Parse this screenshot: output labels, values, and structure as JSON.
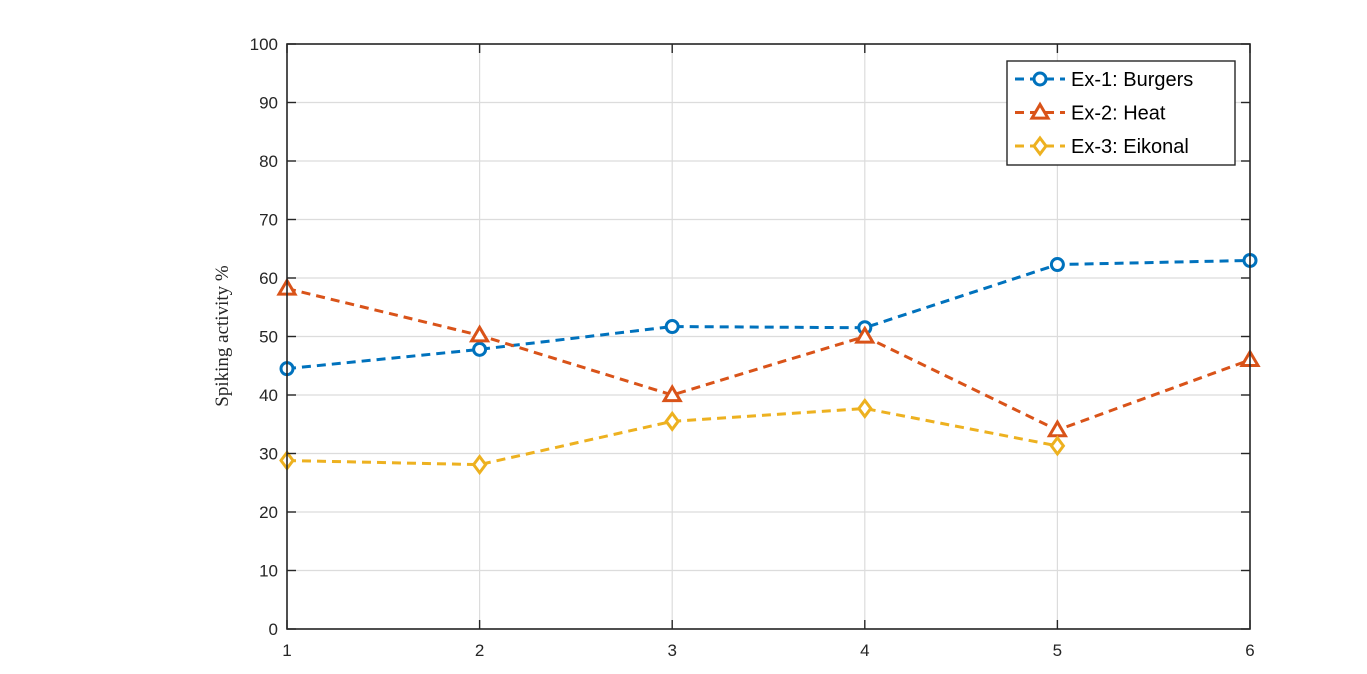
{
  "chart_data": {
    "type": "line",
    "title": "",
    "xlabel": "",
    "ylabel": "Spiking activity %",
    "x": [
      1,
      2,
      3,
      4,
      5,
      6
    ],
    "xlim": [
      1,
      6
    ],
    "ylim": [
      0,
      100
    ],
    "xticks": [
      "1",
      "2",
      "3",
      "4",
      "5",
      "6"
    ],
    "yticks": [
      "0",
      "10",
      "20",
      "30",
      "40",
      "50",
      "60",
      "70",
      "80",
      "90",
      "100"
    ],
    "grid": true,
    "legend_position": "top-right",
    "series": [
      {
        "name": "Ex-1: Burgers",
        "marker": "circle",
        "color": "#0072BD",
        "values": [
          44.5,
          47.8,
          51.7,
          51.5,
          62.3,
          63.0
        ]
      },
      {
        "name": "Ex-2: Heat",
        "marker": "triangle",
        "color": "#D95319",
        "values": [
          58.2,
          50.2,
          40.0,
          50.0,
          34.0,
          46.0
        ]
      },
      {
        "name": "Ex-3: Eikonal",
        "marker": "diamond",
        "color": "#EDB120",
        "values": [
          28.8,
          28.1,
          35.5,
          37.7,
          31.3,
          null
        ]
      }
    ]
  }
}
